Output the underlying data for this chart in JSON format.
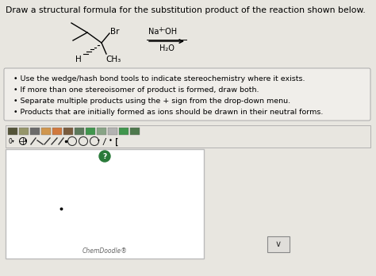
{
  "title": "Draw a structural formula for the substitution product of the reaction shown below.",
  "title_fontsize": 7.8,
  "bg_color": "#e8e6e0",
  "white": "#ffffff",
  "near_white": "#f0eeea",
  "black": "#000000",
  "dark_gray": "#333333",
  "bullet_points": [
    "Use the wedge/hash bond tools to indicate stereochemistry where it exists.",
    "If more than one stereoisomer of product is formed, draw both.",
    "Separate multiple products using the + sign from the drop-down menu.",
    "Products that are initially formed as ions should be drawn in their neutral forms."
  ],
  "bullet_fontsize": 6.8,
  "chemdoodle_label": "ChemDoodle®",
  "border_color": "#aaaaaa",
  "canvas_border": "#bbbbbb",
  "green_circle_color": "#2a7a3a",
  "toolbar_icon_colors_row1": [
    "#3a3a1a",
    "#888855",
    "#555555",
    "#cc8833",
    "#cc6622",
    "#664422",
    "#446644",
    "#228833",
    "#779977",
    "#aaaaaa",
    "#228833",
    "#336633"
  ]
}
